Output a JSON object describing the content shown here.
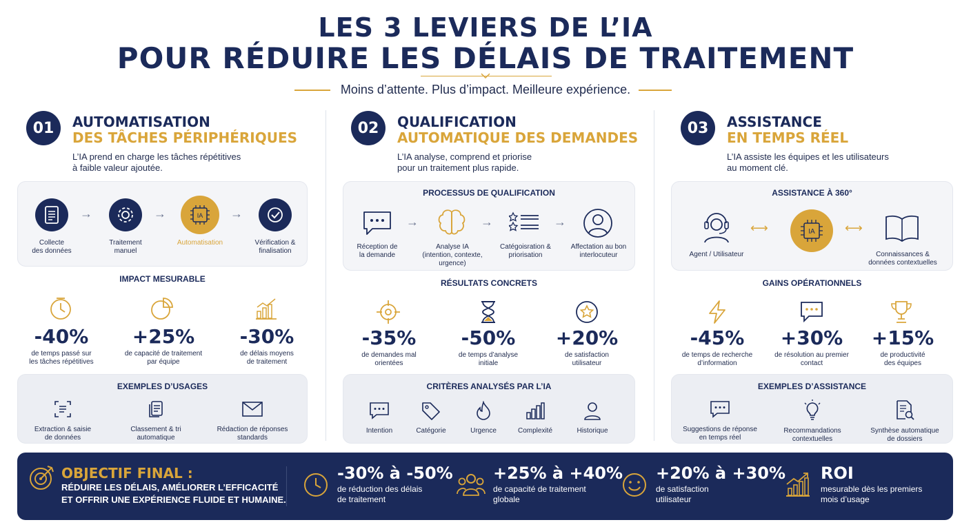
{
  "header": {
    "title_line1": "LES 3 LEVIERS DE L’IA",
    "title_line2": "POUR RÉDUIRE LES DÉLAIS DE TRAITEMENT",
    "subtitle": "Moins d’attente. Plus d’impact. Meilleure expérience."
  },
  "colors": {
    "navy": "#1b2a5a",
    "gold": "#d9a53a",
    "panel": "#f4f5f8"
  },
  "s1": {
    "num": "01",
    "h1": "AUTOMATISATION",
    "h2": "DES TÂCHES PÉRIPHÉRIQUES",
    "desc1": "L’IA prend en charge les tâches répétitives",
    "desc2": "à faible valeur ajoutée.",
    "steps": [
      {
        "a": "Collecte",
        "b": "des données"
      },
      {
        "a": "Traitement",
        "b": "manuel"
      },
      {
        "a": "Automatisation",
        "b": ""
      },
      {
        "a": "Vérification &",
        "b": "finalisation"
      }
    ],
    "center_badge": "IA",
    "impact_title": "IMPACT MESURABLE",
    "metrics": [
      {
        "v": "-40%",
        "a": "de temps passé sur",
        "b": "les tâches répétitives"
      },
      {
        "v": "+25%",
        "a": "de capacité de traitement",
        "b": "par équipe"
      },
      {
        "v": "-30%",
        "a": "de délais moyens",
        "b": "de traitement"
      }
    ],
    "usage_title": "EXEMPLES D’USAGES",
    "usages": [
      {
        "a": "Extraction & saisie",
        "b": "de données"
      },
      {
        "a": "Classement & tri",
        "b": "automatique"
      },
      {
        "a": "Rédaction de réponses",
        "b": "standards"
      }
    ]
  },
  "s2": {
    "num": "02",
    "h1": "QUALIFICATION",
    "h2": "AUTOMATIQUE DES DEMANDES",
    "desc1": "L’IA analyse, comprend et priorise",
    "desc2": "pour un traitement plus rapide.",
    "proc_title": "PROCESSUS DE QUALIFICATION",
    "steps": [
      {
        "a": "Réception de",
        "b": "la demande",
        "c": ""
      },
      {
        "a": "Analyse IA",
        "b": "(intention, contexte,",
        "c": "urgence)"
      },
      {
        "a": "Catégoisration &",
        "b": "priorisation",
        "c": ""
      },
      {
        "a": "Affectation au bon",
        "b": "interlocuteur",
        "c": ""
      }
    ],
    "results_title": "RÉSULTATS CONCRETS",
    "metrics": [
      {
        "v": "-35%",
        "a": "de demandes mal",
        "b": "orientées"
      },
      {
        "v": "-50%",
        "a": "de temps d’analyse",
        "b": "initiale"
      },
      {
        "v": "+20%",
        "a": "de satisfaction",
        "b": "utilisateur"
      }
    ],
    "criteria_title": "CRITÈRES ANALYSÉS PAR L’IA",
    "criteria": [
      "Intention",
      "Catégorie",
      "Urgence",
      "Complexité",
      "Historique"
    ]
  },
  "s3": {
    "num": "03",
    "h1": "ASSISTANCE",
    "h2": "EN TEMPS RÉEL",
    "desc1": "L’IA assiste les équipes et les utilisateurs",
    "desc2": "au moment clé.",
    "panel_title": "ASSISTANCE À 360°",
    "left_a": "Agent / Utilisateur",
    "center_badge": "IA",
    "right_a": "Connaissances &",
    "right_b": "données contextuelles",
    "gains_title": "GAINS OPÉRATIONNELS",
    "metrics": [
      {
        "v": "-45%",
        "a": "de temps de recherche",
        "b": "d’information"
      },
      {
        "v": "+30%",
        "a": "de résolution au premier",
        "b": "contact"
      },
      {
        "v": "+15%",
        "a": "de productivité",
        "b": "des équipes"
      }
    ],
    "ex_title": "EXEMPLES D’ASSISTANCE",
    "examples": [
      {
        "a": "Suggestions de réponse",
        "b": "en temps réel"
      },
      {
        "a": "Recommandations",
        "b": "contextuelles"
      },
      {
        "a": "Synthèse automatique",
        "b": "de dossiers"
      }
    ]
  },
  "banner": {
    "head": "OBJECTIF FINAL :",
    "line1": "RÉDUIRE LES DÉLAIS, AMÉLIORER L’EFFICACITÉ",
    "line2": "ET OFFRIR UNE EXPÉRIENCE FLUIDE ET HUMAINE.",
    "items": [
      {
        "v": "-30% à -50%",
        "a": "de réduction des délais",
        "b": "de traitement"
      },
      {
        "v": "+25% à +40%",
        "a": "de capacité de traitement",
        "b": "globale"
      },
      {
        "v": "+20% à +30%",
        "a": "de satisfaction",
        "b": "utilisateur"
      },
      {
        "v": "ROI",
        "a": "mesurable dès les premiers",
        "b": "mois d’usage"
      }
    ]
  }
}
